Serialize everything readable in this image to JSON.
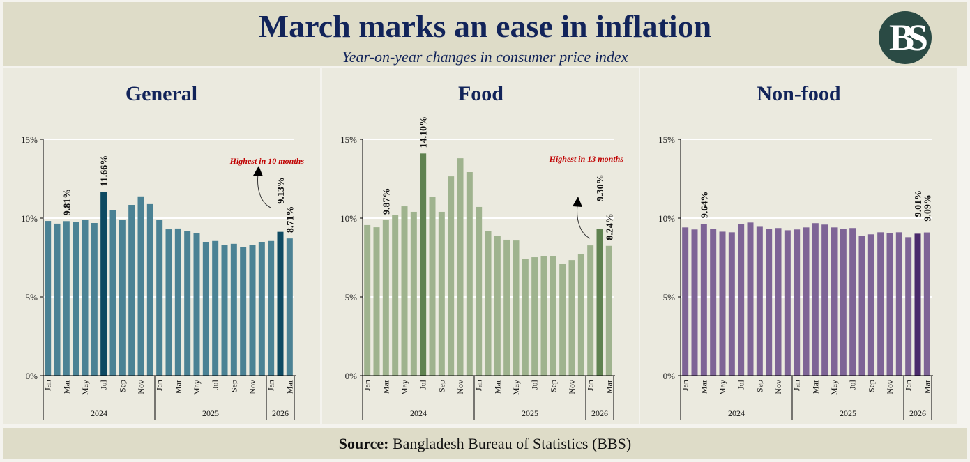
{
  "header": {
    "title": "March marks an ease in inflation",
    "subtitle": "Year-on-year changes in consumer price index",
    "logo_text": "BS"
  },
  "footer": {
    "source_label": "Source:",
    "source_text": " Bangladesh Bureau of Statistics (BBS)"
  },
  "chart_data": [
    {
      "type": "bar",
      "title": "General",
      "ylim": [
        0,
        15
      ],
      "yticks": [
        "0%",
        "5%",
        "10%",
        "15%"
      ],
      "grid": true,
      "color": "#4b8294",
      "highlight_color": "#0e4a62",
      "x": [
        "Jan 2024",
        "Feb 2024",
        "Mar 2024",
        "Apr 2024",
        "May 2024",
        "Jun 2024",
        "Jul 2024",
        "Aug 2024",
        "Sep 2024",
        "Oct 2024",
        "Nov 2024",
        "Dec 2024",
        "Jan 2025",
        "Feb 2025",
        "Mar 2025",
        "Apr 2025",
        "May 2025",
        "Jun 2025",
        "Jul 2025",
        "Aug 2025",
        "Sep 2025",
        "Oct 2025",
        "Nov 2025",
        "Dec 2025",
        "Jan 2026",
        "Feb 2026",
        "Mar 2026"
      ],
      "values": [
        9.82,
        9.65,
        9.81,
        9.74,
        9.87,
        9.69,
        11.66,
        10.49,
        9.91,
        10.84,
        11.38,
        10.89,
        9.91,
        9.29,
        9.34,
        9.17,
        9.03,
        8.46,
        8.55,
        8.29,
        8.37,
        8.17,
        8.29,
        8.46,
        8.55,
        9.13,
        8.71
      ],
      "highlighted": [
        6,
        25
      ],
      "data_labels": [
        {
          "index": 2,
          "text": "9.81%"
        },
        {
          "index": 6,
          "text": "11.66%"
        },
        {
          "index": 25,
          "text": "9.13%"
        },
        {
          "index": 26,
          "text": "8.71%"
        }
      ],
      "annotation": "Highest in 10 months"
    },
    {
      "type": "bar",
      "title": "Food",
      "ylim": [
        0,
        15
      ],
      "yticks": [
        "0%",
        "5%",
        "10%",
        "15%"
      ],
      "grid": true,
      "color": "#9fb38e",
      "highlight_color": "#5f8250",
      "x": [
        "Jan 2024",
        "Feb 2024",
        "Mar 2024",
        "Apr 2024",
        "May 2024",
        "Jun 2024",
        "Jul 2024",
        "Aug 2024",
        "Sep 2024",
        "Oct 2024",
        "Nov 2024",
        "Dec 2024",
        "Jan 2025",
        "Feb 2025",
        "Mar 2025",
        "Apr 2025",
        "May 2025",
        "Jun 2025",
        "Jul 2025",
        "Aug 2025",
        "Sep 2025",
        "Oct 2025",
        "Nov 2025",
        "Dec 2025",
        "Jan 2026",
        "Feb 2026",
        "Mar 2026"
      ],
      "values": [
        9.56,
        9.42,
        9.87,
        10.22,
        10.75,
        10.4,
        14.1,
        11.33,
        10.4,
        12.65,
        13.8,
        12.92,
        10.71,
        9.2,
        8.89,
        8.63,
        8.58,
        7.39,
        7.52,
        7.57,
        7.61,
        7.08,
        7.34,
        7.7,
        8.27,
        9.3,
        8.24
      ],
      "highlighted": [
        6,
        25
      ],
      "data_labels": [
        {
          "index": 2,
          "text": "9.87%"
        },
        {
          "index": 6,
          "text": "14.10%"
        },
        {
          "index": 25,
          "text": "9.30%"
        },
        {
          "index": 26,
          "text": "8.24%"
        }
      ],
      "annotation": "Highest in 13 months"
    },
    {
      "type": "bar",
      "title": "Non-food",
      "ylim": [
        0,
        15
      ],
      "yticks": [
        "0%",
        "5%",
        "10%",
        "15%"
      ],
      "grid": true,
      "color": "#7e6496",
      "highlight_color": "#4a2a6b",
      "x": [
        "Jan 2024",
        "Feb 2024",
        "Mar 2024",
        "Apr 2024",
        "May 2024",
        "Jun 2024",
        "Jul 2024",
        "Aug 2024",
        "Sep 2024",
        "Oct 2024",
        "Nov 2024",
        "Dec 2024",
        "Jan 2025",
        "Feb 2025",
        "Mar 2025",
        "Apr 2025",
        "May 2025",
        "Jun 2025",
        "Jul 2025",
        "Aug 2025",
        "Sep 2025",
        "Oct 2025",
        "Nov 2025",
        "Dec 2025",
        "Jan 2026",
        "Feb 2026",
        "Mar 2026"
      ],
      "values": [
        9.41,
        9.28,
        9.64,
        9.32,
        9.14,
        9.1,
        9.63,
        9.72,
        9.45,
        9.32,
        9.37,
        9.23,
        9.28,
        9.41,
        9.68,
        9.59,
        9.41,
        9.32,
        9.37,
        8.88,
        8.97,
        9.1,
        9.06,
        9.1,
        8.79,
        9.01,
        9.09
      ],
      "highlighted": [
        25
      ],
      "data_labels": [
        {
          "index": 2,
          "text": "9.64%"
        },
        {
          "index": 25,
          "text": "9.01%"
        },
        {
          "index": 26,
          "text": "9.09%"
        }
      ],
      "annotation": ""
    }
  ],
  "axis": {
    "month_ticks": [
      "Jan",
      "Mar",
      "May",
      "Jul",
      "Sep",
      "Nov",
      "Jan",
      "Mar",
      "May",
      "Jul",
      "Sep",
      "Nov",
      "Jan",
      "Mar"
    ],
    "years": [
      {
        "label": "2024",
        "count": 12
      },
      {
        "label": "2025",
        "count": 12
      },
      {
        "label": "2026",
        "count": 3
      }
    ]
  }
}
